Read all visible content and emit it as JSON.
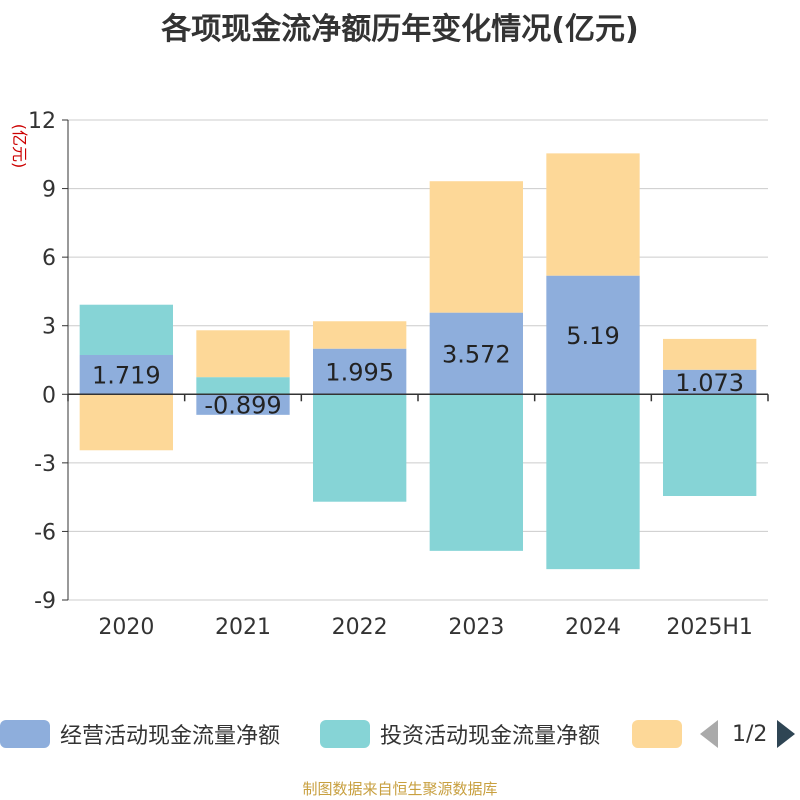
{
  "title": "各项现金流净额历年变化情况(亿元)",
  "source": "制图数据来自恒生聚源数据库",
  "legend_pager": "1/2",
  "chart_data": {
    "type": "bar",
    "stacked": true,
    "title": "各项现金流净额历年变化情况(亿元)",
    "ylabel": "(亿元)",
    "categories": [
      "2020",
      "2021",
      "2022",
      "2023",
      "2024",
      "2025H1"
    ],
    "ylim": [
      -9,
      12
    ],
    "yticks": [
      12,
      9,
      6,
      3,
      0,
      -3,
      -6,
      -9
    ],
    "grid": true,
    "legend_position": "bottom",
    "series": [
      {
        "name": "经营活动现金流量净额",
        "color": "#8eaedc",
        "values": [
          1.719,
          -0.899,
          1.995,
          3.572,
          5.19,
          1.073
        ],
        "labels": [
          "1.719",
          "-0.899",
          "1.995",
          "3.572",
          "5.19",
          "1.073"
        ]
      },
      {
        "name": "投资活动现金流量净额",
        "color": "#86d4d6",
        "values": [
          2.2,
          0.75,
          -4.7,
          -6.85,
          -7.65,
          -4.45
        ]
      },
      {
        "name": "",
        "color": "#fdd898",
        "values": [
          -2.45,
          2.05,
          1.2,
          5.75,
          5.35,
          1.35
        ]
      }
    ]
  }
}
